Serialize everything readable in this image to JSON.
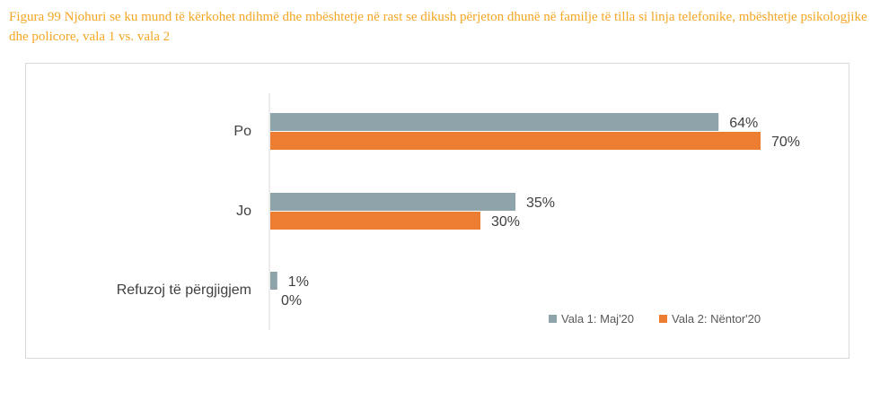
{
  "caption": "Figura 99 Njohuri se ku mund të kërkohet ndihmë dhe mbështetje në rast se dikush përjeton dhunë në familje të tilla si linja telefonike, mbështetje psikologjike dhe policore, vala 1 vs. vala 2",
  "colors": {
    "series1": "#8fa3ab",
    "series2": "#ed7d31",
    "axis": "#d9d9d9",
    "caption": "#f5a623"
  },
  "chart_data": {
    "type": "bar",
    "orientation": "horizontal",
    "title": "",
    "categories": [
      "Po",
      "Jo",
      "Refuzoj të përgjigjem"
    ],
    "series": [
      {
        "name": "Vala 1: Maj'20",
        "values": [
          64,
          35,
          1
        ],
        "labels": [
          "64%",
          "35%",
          "1%"
        ]
      },
      {
        "name": "Vala 2: Nëntor'20",
        "values": [
          70,
          30,
          0
        ],
        "labels": [
          "70%",
          "30%",
          "0%"
        ]
      }
    ],
    "xlim": [
      0,
      100
    ],
    "grid": false,
    "legend": "bottom-right"
  }
}
